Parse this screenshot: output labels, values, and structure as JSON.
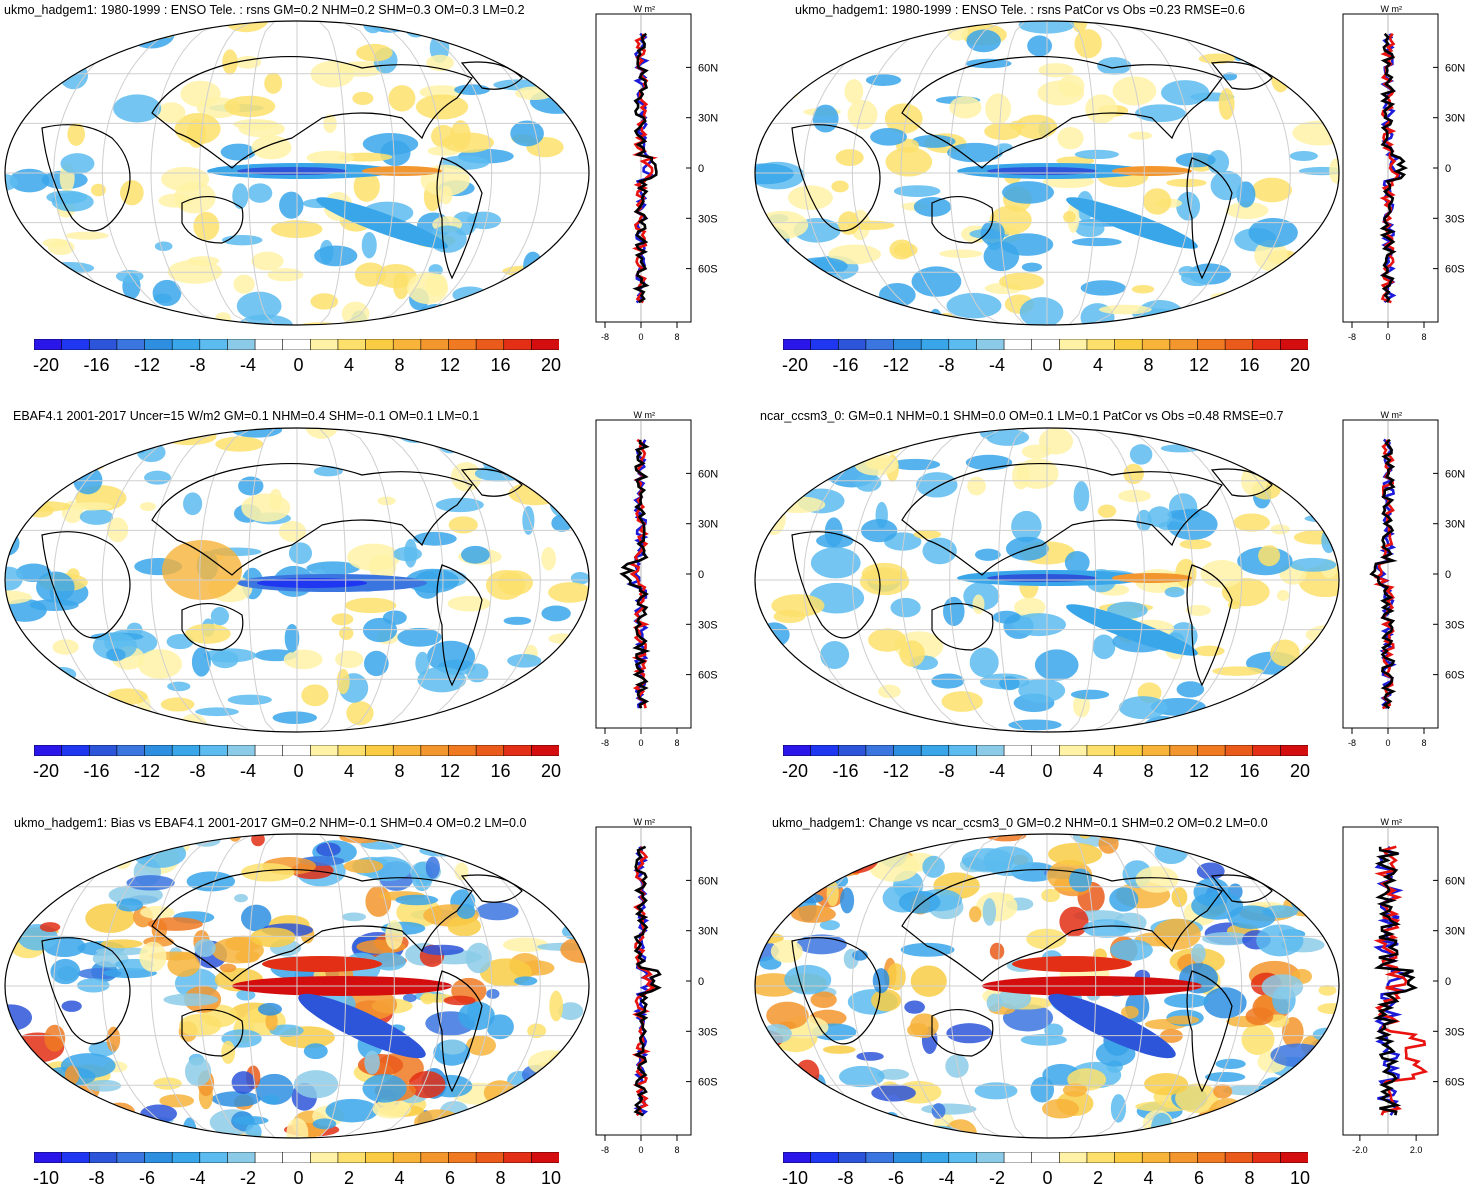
{
  "colorbar_colors": [
    "#2a16e8",
    "#1f37f0",
    "#2d55d9",
    "#3b76e0",
    "#2e8fe0",
    "#3aa6ea",
    "#5cbbef",
    "#8ccbe8",
    "#ffffff",
    "#ffffff",
    "#fff2a6",
    "#fde06c",
    "#f9cc44",
    "#f7b33a",
    "#f3962e",
    "#ef7a22",
    "#ea5a1b",
    "#e32f15",
    "#d40e0e"
  ],
  "colors": {
    "model": "#e8120e",
    "obs": "#1a1ad8",
    "mmm": "#000000",
    "lonlat_grid": "#cfcfcf",
    "coast": "#000000"
  },
  "panels": [
    {
      "id": "p1",
      "title": "ukmo_hadgem1: 1980-1999 : ENSO Tele. : rsns GM=0.2 NHM=0.2 SHM=0.3 OM=0.3 LM=0.2",
      "colorbar_labels": [
        "-20",
        "-16",
        "-12",
        "-8",
        "-4",
        "0",
        "4",
        "8",
        "12",
        "16",
        "20"
      ],
      "zonal": {
        "unit": "W m²",
        "xticks": [
          "-8",
          "0",
          "8"
        ],
        "lat_labels": [
          "60N",
          "30N",
          "0",
          "30S",
          "60S"
        ]
      }
    },
    {
      "id": "p2",
      "title": "ukmo_hadgem1: 1980-1999 : ENSO Tele. : rsns PatCor vs Obs =0.23 RMSE=0.6",
      "colorbar_labels": [
        "-20",
        "-16",
        "-12",
        "-8",
        "-4",
        "0",
        "4",
        "8",
        "12",
        "16",
        "20"
      ],
      "zonal": {
        "unit": "W m²",
        "xticks": [
          "-8",
          "0",
          "8"
        ],
        "lat_labels": [
          "60N",
          "30N",
          "0",
          "30S",
          "60S"
        ]
      }
    },
    {
      "id": "p3",
      "title": "EBAF4.1 2001-2017 Uncer=15 W/m2 GM=0.1 NHM=0.4 SHM=-0.1 OM=0.1 LM=0.1",
      "colorbar_labels": [
        "-20",
        "-16",
        "-12",
        "-8",
        "-4",
        "0",
        "4",
        "8",
        "12",
        "16",
        "20"
      ],
      "zonal": {
        "unit": "W m²",
        "xticks": [
          "-8",
          "0",
          "8"
        ],
        "lat_labels": [
          "60N",
          "30N",
          "0",
          "30S",
          "60S"
        ]
      }
    },
    {
      "id": "p4",
      "title": "ncar_ccsm3_0: GM=0.1 NHM=0.1 SHM=0.0 OM=0.1 LM=0.1 PatCor vs Obs =0.48 RMSE=0.7",
      "colorbar_labels": [
        "-20",
        "-16",
        "-12",
        "-8",
        "-4",
        "0",
        "4",
        "8",
        "12",
        "16",
        "20"
      ],
      "zonal": {
        "unit": "W m²",
        "xticks": [
          "-8",
          "0",
          "8"
        ],
        "lat_labels": [
          "60N",
          "30N",
          "0",
          "30S",
          "60S"
        ]
      }
    },
    {
      "id": "p5",
      "title": "ukmo_hadgem1: Bias vs EBAF4.1 2001-2017 GM=0.2 NHM=-0.1 SHM=0.4 OM=0.2 LM=0.0",
      "colorbar_labels": [
        "-10",
        "-8",
        "-6",
        "-4",
        "-2",
        "0",
        "2",
        "4",
        "6",
        "8",
        "10"
      ],
      "zonal": {
        "unit": "W m²",
        "xticks": [
          "-8",
          "0",
          "8"
        ],
        "lat_labels": [
          "60N",
          "30N",
          "0",
          "30S",
          "60S"
        ]
      }
    },
    {
      "id": "p6",
      "title": "ukmo_hadgem1: Change vs ncar_ccsm3_0 GM=0.2 NHM=0.1 SHM=0.2 OM=0.2 LM=0.0",
      "colorbar_labels": [
        "-10",
        "-8",
        "-6",
        "-4",
        "-2",
        "0",
        "2",
        "4",
        "6",
        "8",
        "10"
      ],
      "zonal": {
        "unit": "W m²",
        "xticks": [
          "-2.0",
          "2.0"
        ],
        "lat_labels": [
          "60N",
          "30N",
          "0",
          "30S",
          "60S"
        ]
      }
    }
  ],
  "chart_data": [
    {
      "type": "heatmap",
      "panel": "p1",
      "title": "ukmo_hadgem1: 1980-1999 : ENSO Tele. : rsns GM=0.2 NHM=0.2 SHM=0.3 OM=0.3 LM=0.2",
      "projection": "Robinson",
      "colorbar": [
        -20,
        -18,
        -16,
        -14,
        -12,
        -10,
        -8,
        -6,
        -4,
        -2,
        0,
        2,
        4,
        6,
        8,
        10,
        12,
        14,
        16,
        18,
        20
      ],
      "zonal_mean": {
        "xlim": [
          -10,
          10
        ],
        "xticks": [
          -8,
          0,
          8
        ],
        "ylim": [
          -90,
          90
        ],
        "series": [
          "model",
          "obs",
          "mmm"
        ]
      }
    },
    {
      "type": "heatmap",
      "panel": "p2",
      "title": "ukmo_hadgem1: 1980-1999 : ENSO Tele. : rsns PatCor vs Obs =0.23 RMSE=0.6",
      "projection": "Robinson",
      "colorbar": [
        -20,
        -18,
        -16,
        -14,
        -12,
        -10,
        -8,
        -6,
        -4,
        -2,
        0,
        2,
        4,
        6,
        8,
        10,
        12,
        14,
        16,
        18,
        20
      ],
      "zonal_mean": {
        "xlim": [
          -10,
          10
        ],
        "xticks": [
          -8,
          0,
          8
        ],
        "ylim": [
          -90,
          90
        ],
        "series": [
          "model",
          "obs",
          "mmm"
        ]
      }
    },
    {
      "type": "heatmap",
      "panel": "p3",
      "title": "EBAF4.1 2001-2017 Uncer=15 W/m2 GM=0.1 NHM=0.4 SHM=-0.1 OM=0.1 LM=0.1",
      "projection": "Robinson",
      "colorbar": [
        -20,
        -18,
        -16,
        -14,
        -12,
        -10,
        -8,
        -6,
        -4,
        -2,
        0,
        2,
        4,
        6,
        8,
        10,
        12,
        14,
        16,
        18,
        20
      ],
      "zonal_mean": {
        "xlim": [
          -10,
          10
        ],
        "xticks": [
          -8,
          0,
          8
        ],
        "ylim": [
          -90,
          90
        ],
        "series": [
          "model",
          "obs",
          "mmm"
        ]
      }
    },
    {
      "type": "heatmap",
      "panel": "p4",
      "title": "ncar_ccsm3_0: GM=0.1 NHM=0.1 SHM=0.0 OM=0.1 LM=0.1 PatCor vs Obs =0.48 RMSE=0.7",
      "projection": "Robinson",
      "colorbar": [
        -20,
        -18,
        -16,
        -14,
        -12,
        -10,
        -8,
        -6,
        -4,
        -2,
        0,
        2,
        4,
        6,
        8,
        10,
        12,
        14,
        16,
        18,
        20
      ],
      "zonal_mean": {
        "xlim": [
          -10,
          10
        ],
        "xticks": [
          -8,
          0,
          8
        ],
        "ylim": [
          -90,
          90
        ],
        "series": [
          "model",
          "obs",
          "mmm"
        ]
      }
    },
    {
      "type": "heatmap",
      "panel": "p5",
      "title": "ukmo_hadgem1: Bias vs EBAF4.1 2001-2017 GM=0.2 NHM=-0.1 SHM=0.4 OM=0.2 LM=0.0",
      "projection": "Robinson",
      "colorbar": [
        -10,
        -9,
        -8,
        -7,
        -6,
        -5,
        -4,
        -3,
        -2,
        -1,
        0,
        1,
        2,
        3,
        4,
        5,
        6,
        7,
        8,
        9,
        10
      ],
      "zonal_mean": {
        "xlim": [
          -10,
          10
        ],
        "xticks": [
          -8,
          0,
          8
        ],
        "ylim": [
          -90,
          90
        ],
        "series": [
          "model",
          "obs",
          "mmm"
        ]
      }
    },
    {
      "type": "heatmap",
      "panel": "p6",
      "title": "ukmo_hadgem1: Change vs ncar_ccsm3_0 GM=0.2 NHM=0.1 SHM=0.2 OM=0.2 LM=0.0",
      "projection": "Robinson",
      "colorbar": [
        -10,
        -9,
        -8,
        -7,
        -6,
        -5,
        -4,
        -3,
        -2,
        -1,
        0,
        1,
        2,
        3,
        4,
        5,
        6,
        7,
        8,
        9,
        10
      ],
      "zonal_mean": {
        "xlim": [
          -3,
          3
        ],
        "xticks": [
          -2.0,
          2.0
        ],
        "ylim": [
          -90,
          90
        ],
        "series": [
          "model",
          "obs",
          "mmm"
        ]
      }
    }
  ]
}
